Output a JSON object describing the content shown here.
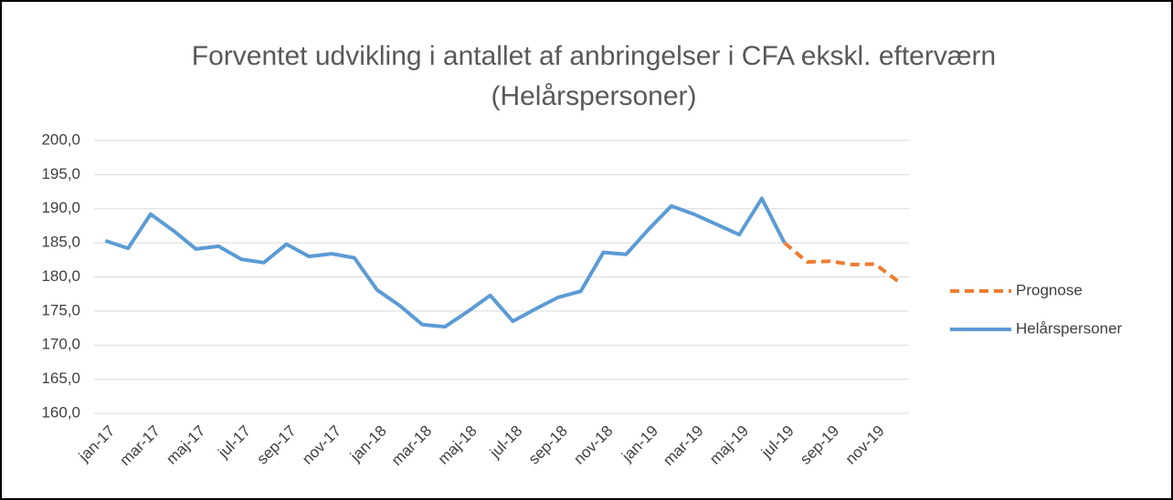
{
  "chart_data": {
    "type": "line",
    "title": "Forventet udvikling i antallet af anbringelser i CFA ekskl. efterværn (Helårspersoner)",
    "categories": [
      "jan-17",
      null,
      "mar-17",
      null,
      "maj-17",
      null,
      "jul-17",
      null,
      "sep-17",
      null,
      "nov-17",
      null,
      "jan-18",
      null,
      "mar-18",
      null,
      "maj-18",
      null,
      "jul-18",
      null,
      "sep-18",
      null,
      "nov-18",
      null,
      "jan-19",
      null,
      "mar-19",
      null,
      "maj-19",
      null,
      "jul-19",
      null,
      "sep-19",
      null,
      "nov-19",
      null
    ],
    "series": [
      {
        "name": "Prognose",
        "color": "#ed7d31",
        "dashed": true,
        "values": [
          null,
          null,
          null,
          null,
          null,
          null,
          null,
          null,
          null,
          null,
          null,
          null,
          null,
          null,
          null,
          null,
          null,
          null,
          null,
          null,
          null,
          null,
          null,
          null,
          null,
          null,
          null,
          null,
          null,
          null,
          185.0,
          182.2,
          182.3,
          181.8,
          181.9,
          179.4
        ]
      },
      {
        "name": "Helårspersoner",
        "color": "#5b9bd5",
        "dashed": false,
        "values": [
          185.3,
          184.2,
          189.2,
          186.8,
          184.1,
          184.5,
          182.6,
          182.1,
          184.8,
          183.0,
          183.4,
          182.8,
          178.1,
          175.8,
          173.0,
          172.7,
          174.9,
          177.3,
          173.5,
          175.3,
          177.0,
          177.9,
          183.6,
          183.3,
          187.0,
          190.4,
          189.2,
          187.7,
          186.2,
          191.5,
          185.0,
          null,
          null,
          null,
          null,
          null
        ]
      }
    ],
    "ylim": [
      160,
      200
    ],
    "yticks": [
      {
        "value": 160,
        "label": "160,0"
      },
      {
        "value": 165,
        "label": "165,0"
      },
      {
        "value": 170,
        "label": "170,0"
      },
      {
        "value": 175,
        "label": "175,0"
      },
      {
        "value": 180,
        "label": "180,0"
      },
      {
        "value": 185,
        "label": "185,0"
      },
      {
        "value": 190,
        "label": "190,0"
      },
      {
        "value": 195,
        "label": "195,0"
      },
      {
        "value": 200,
        "label": "200,0"
      }
    ],
    "grid": true,
    "legend": "right"
  }
}
